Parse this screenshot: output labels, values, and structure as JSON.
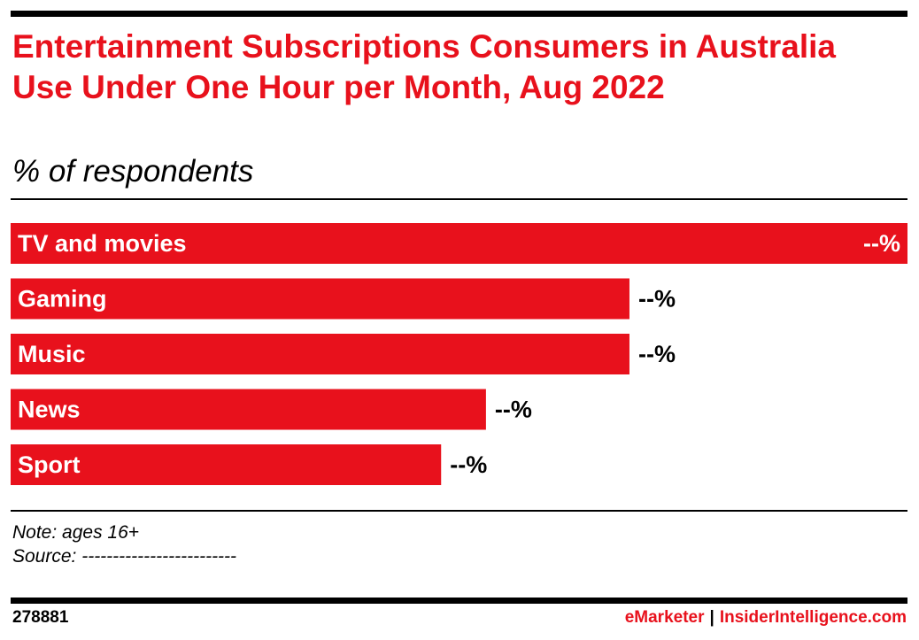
{
  "header": {
    "title": "Entertainment Subscriptions Consumers in Australia Use Under One Hour per Month, Aug 2022",
    "subtitle": "% of respondents"
  },
  "chart_data": {
    "type": "bar",
    "orientation": "horizontal",
    "title": "Entertainment Subscriptions Consumers in Australia Use Under One Hour per Month, Aug 2022",
    "subtitle": "% of respondents",
    "categories": [
      "TV and movies",
      "Gaming",
      "Music",
      "News",
      "Sport"
    ],
    "values": [
      100,
      69,
      69,
      53,
      48
    ],
    "value_labels": [
      "--%",
      "--%",
      "--%",
      "--%",
      "--%"
    ],
    "xlim": [
      0,
      100
    ],
    "grid": false,
    "legend": "none",
    "bar_color": "#e8111c"
  },
  "footer": {
    "note": "Note: ages 16+",
    "source": "Source: -------------------------",
    "chart_id": "278881",
    "brand_emarketer": "eMarketer",
    "brand_separator": "|",
    "brand_insider": "InsiderIntelligence.com"
  }
}
